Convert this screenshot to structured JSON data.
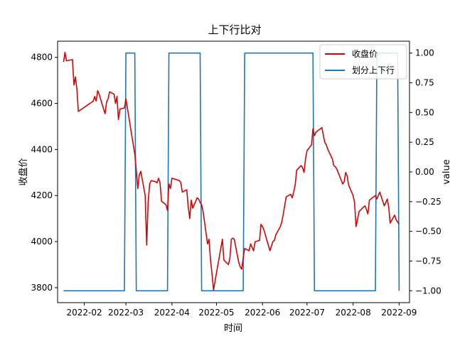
{
  "chart_data": {
    "type": "line",
    "title": "上下行比对",
    "xlabel": "时间",
    "ylabel": "收盘价",
    "y2label": "value",
    "x_range": [
      "2022-01-14",
      "2022-09-08"
    ],
    "ylim": [
      3735,
      4870
    ],
    "y2lim": [
      -1.1,
      1.1
    ],
    "x_ticks": [
      "2022-02-01",
      "2022-03-01",
      "2022-04-01",
      "2022-05-01",
      "2022-06-01",
      "2022-07-01",
      "2022-08-01",
      "2022-09-01"
    ],
    "x_tick_labels": [
      "2022-02",
      "2022-03",
      "2022-04",
      "2022-05",
      "2022-06",
      "2022-07",
      "2022-08",
      "2022-09"
    ],
    "y_ticks": [
      3800,
      4000,
      4200,
      4400,
      4600,
      4800
    ],
    "y2_ticks": [
      -1.0,
      -0.75,
      -0.5,
      -0.25,
      0.0,
      0.25,
      0.5,
      0.75,
      1.0
    ],
    "y2_tick_labels": [
      "−1.00",
      "−0.75",
      "−0.50",
      "−0.25",
      "0.00",
      "0.25",
      "0.50",
      "0.75",
      "1.00"
    ],
    "legend": {
      "position": "top-right",
      "entries": [
        "收盘价",
        "划分上下行"
      ]
    },
    "grid": false,
    "series": [
      {
        "name": "收盘价",
        "axis": "left",
        "color": "#e00000",
        "points": [
          [
            "2022-01-18",
            4780
          ],
          [
            "2022-01-19",
            4822
          ],
          [
            "2022-01-20",
            4785
          ],
          [
            "2022-01-24",
            4790
          ],
          [
            "2022-01-25",
            4680
          ],
          [
            "2022-01-26",
            4715
          ],
          [
            "2022-01-27",
            4660
          ],
          [
            "2022-01-28",
            4565
          ],
          [
            "2022-02-07",
            4610
          ],
          [
            "2022-02-08",
            4630
          ],
          [
            "2022-02-09",
            4610
          ],
          [
            "2022-02-10",
            4655
          ],
          [
            "2022-02-11",
            4640
          ],
          [
            "2022-02-14",
            4575
          ],
          [
            "2022-02-15",
            4555
          ],
          [
            "2022-02-16",
            4605
          ],
          [
            "2022-02-17",
            4620
          ],
          [
            "2022-02-18",
            4650
          ],
          [
            "2022-02-21",
            4640
          ],
          [
            "2022-02-22",
            4600
          ],
          [
            "2022-02-23",
            4630
          ],
          [
            "2022-02-24",
            4530
          ],
          [
            "2022-02-25",
            4575
          ],
          [
            "2022-02-28",
            4580
          ],
          [
            "2022-03-01",
            4620
          ],
          [
            "2022-03-02",
            4580
          ],
          [
            "2022-03-03",
            4540
          ],
          [
            "2022-03-04",
            4500
          ],
          [
            "2022-03-07",
            4380
          ],
          [
            "2022-03-08",
            4310
          ],
          [
            "2022-03-09",
            4230
          ],
          [
            "2022-03-10",
            4290
          ],
          [
            "2022-03-11",
            4305
          ],
          [
            "2022-03-14",
            4200
          ],
          [
            "2022-03-15",
            3985
          ],
          [
            "2022-03-16",
            4170
          ],
          [
            "2022-03-17",
            4250
          ],
          [
            "2022-03-18",
            4265
          ],
          [
            "2022-03-21",
            4260
          ],
          [
            "2022-03-22",
            4255
          ],
          [
            "2022-03-23",
            4275
          ],
          [
            "2022-03-24",
            4255
          ],
          [
            "2022-03-25",
            4175
          ],
          [
            "2022-03-28",
            4160
          ],
          [
            "2022-03-29",
            4135
          ],
          [
            "2022-03-30",
            4250
          ],
          [
            "2022-03-31",
            4230
          ],
          [
            "2022-04-01",
            4275
          ],
          [
            "2022-04-06",
            4265
          ],
          [
            "2022-04-07",
            4255
          ],
          [
            "2022-04-08",
            4215
          ],
          [
            "2022-04-11",
            4225
          ],
          [
            "2022-04-12",
            4150
          ],
          [
            "2022-04-13",
            4100
          ],
          [
            "2022-04-14",
            4180
          ],
          [
            "2022-04-15",
            4145
          ],
          [
            "2022-04-18",
            4190
          ],
          [
            "2022-04-19",
            4185
          ],
          [
            "2022-04-20",
            4170
          ],
          [
            "2022-04-21",
            4160
          ],
          [
            "2022-04-22",
            4130
          ],
          [
            "2022-04-25",
            3990
          ],
          [
            "2022-04-26",
            4010
          ],
          [
            "2022-04-27",
            3920
          ],
          [
            "2022-04-28",
            3860
          ],
          [
            "2022-04-29",
            3790
          ],
          [
            "2022-05-05",
            4010
          ],
          [
            "2022-05-06",
            3920
          ],
          [
            "2022-05-09",
            3900
          ],
          [
            "2022-05-10",
            3925
          ],
          [
            "2022-05-11",
            4010
          ],
          [
            "2022-05-12",
            4015
          ],
          [
            "2022-05-13",
            4010
          ],
          [
            "2022-05-16",
            3910
          ],
          [
            "2022-05-17",
            3890
          ],
          [
            "2022-05-18",
            3880
          ],
          [
            "2022-05-19",
            3930
          ],
          [
            "2022-05-20",
            3970
          ],
          [
            "2022-05-23",
            3960
          ],
          [
            "2022-05-24",
            3990
          ],
          [
            "2022-05-25",
            3975
          ],
          [
            "2022-05-26",
            3960
          ],
          [
            "2022-05-27",
            4000
          ],
          [
            "2022-05-30",
            4005
          ],
          [
            "2022-05-31",
            4075
          ],
          [
            "2022-06-01",
            4065
          ],
          [
            "2022-06-02",
            4050
          ],
          [
            "2022-06-06",
            3960
          ],
          [
            "2022-06-07",
            3980
          ],
          [
            "2022-06-08",
            4000
          ],
          [
            "2022-06-09",
            4005
          ],
          [
            "2022-06-10",
            4030
          ],
          [
            "2022-06-13",
            4065
          ],
          [
            "2022-06-14",
            4085
          ],
          [
            "2022-06-15",
            4120
          ],
          [
            "2022-06-16",
            4160
          ],
          [
            "2022-06-17",
            4195
          ],
          [
            "2022-06-20",
            4205
          ],
          [
            "2022-06-21",
            4190
          ],
          [
            "2022-06-22",
            4215
          ],
          [
            "2022-06-23",
            4245
          ],
          [
            "2022-06-24",
            4310
          ],
          [
            "2022-06-27",
            4330
          ],
          [
            "2022-06-28",
            4320
          ],
          [
            "2022-06-29",
            4300
          ],
          [
            "2022-06-30",
            4360
          ],
          [
            "2022-07-01",
            4395
          ],
          [
            "2022-07-04",
            4420
          ],
          [
            "2022-07-05",
            4490
          ],
          [
            "2022-07-06",
            4460
          ],
          [
            "2022-07-07",
            4475
          ],
          [
            "2022-07-08",
            4480
          ],
          [
            "2022-07-11",
            4495
          ],
          [
            "2022-07-12",
            4460
          ],
          [
            "2022-07-13",
            4430
          ],
          [
            "2022-07-14",
            4420
          ],
          [
            "2022-07-15",
            4400
          ],
          [
            "2022-07-18",
            4360
          ],
          [
            "2022-07-19",
            4330
          ],
          [
            "2022-07-20",
            4325
          ],
          [
            "2022-07-21",
            4315
          ],
          [
            "2022-07-22",
            4300
          ],
          [
            "2022-07-25",
            4250
          ],
          [
            "2022-07-26",
            4260
          ],
          [
            "2022-07-27",
            4300
          ],
          [
            "2022-07-28",
            4285
          ],
          [
            "2022-07-29",
            4245
          ],
          [
            "2022-08-01",
            4200
          ],
          [
            "2022-08-02",
            4170
          ],
          [
            "2022-08-03",
            4065
          ],
          [
            "2022-08-04",
            4095
          ],
          [
            "2022-08-05",
            4130
          ],
          [
            "2022-08-08",
            4150
          ],
          [
            "2022-08-09",
            4155
          ],
          [
            "2022-08-10",
            4140
          ],
          [
            "2022-08-11",
            4120
          ],
          [
            "2022-08-12",
            4180
          ],
          [
            "2022-08-15",
            4195
          ],
          [
            "2022-08-16",
            4200
          ],
          [
            "2022-08-17",
            4185
          ],
          [
            "2022-08-18",
            4200
          ],
          [
            "2022-08-19",
            4215
          ],
          [
            "2022-08-22",
            4155
          ],
          [
            "2022-08-23",
            4170
          ],
          [
            "2022-08-24",
            4185
          ],
          [
            "2022-08-25",
            4150
          ],
          [
            "2022-08-26",
            4080
          ],
          [
            "2022-08-29",
            4115
          ],
          [
            "2022-08-30",
            4095
          ],
          [
            "2022-08-31",
            4085
          ],
          [
            "2022-09-01",
            4075
          ]
        ]
      },
      {
        "name": "划分上下行",
        "axis": "right",
        "color": "#1f77b4",
        "points": [
          [
            "2022-01-18",
            -1
          ],
          [
            "2022-02-28",
            -1
          ],
          [
            "2022-03-01",
            1
          ],
          [
            "2022-03-07",
            1
          ],
          [
            "2022-03-08",
            -1
          ],
          [
            "2022-03-29",
            -1
          ],
          [
            "2022-03-30",
            1
          ],
          [
            "2022-04-20",
            1
          ],
          [
            "2022-04-21",
            -1
          ],
          [
            "2022-05-19",
            -1
          ],
          [
            "2022-05-20",
            1
          ],
          [
            "2022-07-05",
            1
          ],
          [
            "2022-07-06",
            -1
          ],
          [
            "2022-08-16",
            -1
          ],
          [
            "2022-08-17",
            1
          ],
          [
            "2022-08-31",
            1
          ],
          [
            "2022-09-01",
            -1
          ]
        ]
      }
    ]
  }
}
